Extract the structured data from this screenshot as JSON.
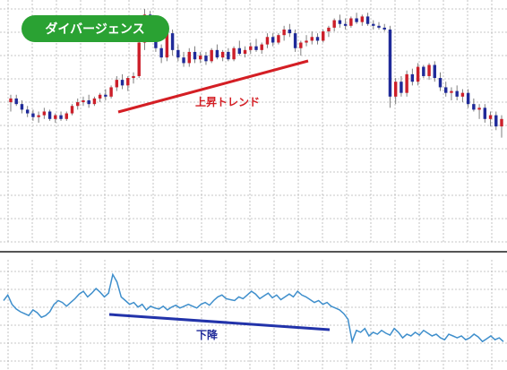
{
  "title_badge": "ダイバージェンス",
  "annotations": {
    "price_trend": "上昇トレンド",
    "indicator_trend": "下降"
  },
  "colors": {
    "bull_candle": "#cc1f2a",
    "bear_candle": "#1f2a99",
    "wick": "#7f7f7f",
    "grid": "#b5b5b5",
    "indicator_line": "#3f8fcc",
    "price_trend_line": "#d41e24",
    "indicator_trend_line": "#2233aa",
    "badge_bg": "#2aa233",
    "badge_text": "#ffffff",
    "price_trend_text": "#d41e24",
    "indicator_trend_text": "#1f2a99"
  },
  "chart_data": [
    {
      "type": "candlestick",
      "title": "",
      "grid": true,
      "legend": "none",
      "ylim": [
        0,
        100
      ],
      "candles": [
        {
          "o": 49,
          "h": 53,
          "l": 44,
          "c": 51
        },
        {
          "o": 51,
          "h": 53,
          "l": 47,
          "c": 48
        },
        {
          "o": 48,
          "h": 50,
          "l": 43,
          "c": 45
        },
        {
          "o": 45,
          "h": 47,
          "l": 41,
          "c": 43
        },
        {
          "o": 43,
          "h": 45,
          "l": 39,
          "c": 41
        },
        {
          "o": 41,
          "h": 44,
          "l": 38,
          "c": 42
        },
        {
          "o": 42,
          "h": 46,
          "l": 40,
          "c": 44
        },
        {
          "o": 44,
          "h": 45,
          "l": 39,
          "c": 40
        },
        {
          "o": 40,
          "h": 43,
          "l": 38,
          "c": 42
        },
        {
          "o": 42,
          "h": 44,
          "l": 39,
          "c": 40
        },
        {
          "o": 40,
          "h": 44,
          "l": 39,
          "c": 43
        },
        {
          "o": 43,
          "h": 48,
          "l": 42,
          "c": 47
        },
        {
          "o": 47,
          "h": 51,
          "l": 45,
          "c": 49
        },
        {
          "o": 49,
          "h": 52,
          "l": 47,
          "c": 50
        },
        {
          "o": 50,
          "h": 53,
          "l": 46,
          "c": 48
        },
        {
          "o": 48,
          "h": 52,
          "l": 47,
          "c": 51
        },
        {
          "o": 51,
          "h": 54,
          "l": 49,
          "c": 53
        },
        {
          "o": 53,
          "h": 56,
          "l": 50,
          "c": 52
        },
        {
          "o": 52,
          "h": 58,
          "l": 51,
          "c": 57
        },
        {
          "o": 57,
          "h": 63,
          "l": 55,
          "c": 61
        },
        {
          "o": 61,
          "h": 64,
          "l": 56,
          "c": 58
        },
        {
          "o": 58,
          "h": 63,
          "l": 55,
          "c": 62
        },
        {
          "o": 62,
          "h": 65,
          "l": 59,
          "c": 63
        },
        {
          "o": 63,
          "h": 83,
          "l": 62,
          "c": 81
        },
        {
          "o": 81,
          "h": 99,
          "l": 77,
          "c": 96
        },
        {
          "o": 96,
          "h": 98,
          "l": 82,
          "c": 84
        },
        {
          "o": 84,
          "h": 90,
          "l": 76,
          "c": 78
        },
        {
          "o": 78,
          "h": 80,
          "l": 70,
          "c": 73
        },
        {
          "o": 73,
          "h": 88,
          "l": 71,
          "c": 86
        },
        {
          "o": 86,
          "h": 88,
          "l": 74,
          "c": 77
        },
        {
          "o": 77,
          "h": 80,
          "l": 71,
          "c": 73
        },
        {
          "o": 73,
          "h": 76,
          "l": 68,
          "c": 70
        },
        {
          "o": 70,
          "h": 78,
          "l": 68,
          "c": 76
        },
        {
          "o": 76,
          "h": 79,
          "l": 70,
          "c": 72
        },
        {
          "o": 72,
          "h": 76,
          "l": 70,
          "c": 74
        },
        {
          "o": 74,
          "h": 76,
          "l": 69,
          "c": 71
        },
        {
          "o": 71,
          "h": 78,
          "l": 70,
          "c": 77
        },
        {
          "o": 77,
          "h": 80,
          "l": 72,
          "c": 73
        },
        {
          "o": 73,
          "h": 77,
          "l": 71,
          "c": 76
        },
        {
          "o": 76,
          "h": 78,
          "l": 71,
          "c": 72
        },
        {
          "o": 72,
          "h": 79,
          "l": 71,
          "c": 78
        },
        {
          "o": 78,
          "h": 82,
          "l": 74,
          "c": 75
        },
        {
          "o": 75,
          "h": 79,
          "l": 73,
          "c": 77
        },
        {
          "o": 77,
          "h": 81,
          "l": 75,
          "c": 79
        },
        {
          "o": 79,
          "h": 83,
          "l": 76,
          "c": 77
        },
        {
          "o": 77,
          "h": 81,
          "l": 75,
          "c": 80
        },
        {
          "o": 80,
          "h": 86,
          "l": 78,
          "c": 84
        },
        {
          "o": 84,
          "h": 86,
          "l": 79,
          "c": 81
        },
        {
          "o": 81,
          "h": 86,
          "l": 80,
          "c": 85
        },
        {
          "o": 85,
          "h": 90,
          "l": 82,
          "c": 88
        },
        {
          "o": 88,
          "h": 91,
          "l": 84,
          "c": 86
        },
        {
          "o": 86,
          "h": 88,
          "l": 76,
          "c": 78
        },
        {
          "o": 78,
          "h": 82,
          "l": 74,
          "c": 81
        },
        {
          "o": 81,
          "h": 85,
          "l": 79,
          "c": 82
        },
        {
          "o": 82,
          "h": 87,
          "l": 80,
          "c": 84
        },
        {
          "o": 84,
          "h": 86,
          "l": 80,
          "c": 82
        },
        {
          "o": 82,
          "h": 88,
          "l": 81,
          "c": 87
        },
        {
          "o": 87,
          "h": 90,
          "l": 84,
          "c": 89
        },
        {
          "o": 89,
          "h": 94,
          "l": 87,
          "c": 93
        },
        {
          "o": 93,
          "h": 96,
          "l": 89,
          "c": 91
        },
        {
          "o": 91,
          "h": 94,
          "l": 88,
          "c": 90
        },
        {
          "o": 90,
          "h": 95,
          "l": 89,
          "c": 94
        },
        {
          "o": 94,
          "h": 97,
          "l": 91,
          "c": 92
        },
        {
          "o": 92,
          "h": 96,
          "l": 90,
          "c": 95
        },
        {
          "o": 95,
          "h": 97,
          "l": 90,
          "c": 91
        },
        {
          "o": 91,
          "h": 93,
          "l": 88,
          "c": 90
        },
        {
          "o": 90,
          "h": 92,
          "l": 88,
          "c": 89
        },
        {
          "o": 89,
          "h": 91,
          "l": 87,
          "c": 88
        },
        {
          "o": 88,
          "h": 90,
          "l": 46,
          "c": 52
        },
        {
          "o": 52,
          "h": 62,
          "l": 48,
          "c": 60
        },
        {
          "o": 60,
          "h": 63,
          "l": 52,
          "c": 54
        },
        {
          "o": 54,
          "h": 66,
          "l": 52,
          "c": 64
        },
        {
          "o": 64,
          "h": 67,
          "l": 58,
          "c": 60
        },
        {
          "o": 60,
          "h": 70,
          "l": 58,
          "c": 68
        },
        {
          "o": 68,
          "h": 69,
          "l": 62,
          "c": 63
        },
        {
          "o": 63,
          "h": 70,
          "l": 61,
          "c": 69
        },
        {
          "o": 69,
          "h": 71,
          "l": 60,
          "c": 62
        },
        {
          "o": 62,
          "h": 65,
          "l": 55,
          "c": 57
        },
        {
          "o": 57,
          "h": 60,
          "l": 52,
          "c": 54
        },
        {
          "o": 54,
          "h": 57,
          "l": 50,
          "c": 55
        },
        {
          "o": 55,
          "h": 58,
          "l": 50,
          "c": 52
        },
        {
          "o": 52,
          "h": 56,
          "l": 49,
          "c": 54
        },
        {
          "o": 54,
          "h": 56,
          "l": 46,
          "c": 48
        },
        {
          "o": 48,
          "h": 51,
          "l": 44,
          "c": 45
        },
        {
          "o": 45,
          "h": 48,
          "l": 40,
          "c": 46
        },
        {
          "o": 46,
          "h": 48,
          "l": 38,
          "c": 40
        },
        {
          "o": 40,
          "h": 44,
          "l": 36,
          "c": 42
        },
        {
          "o": 42,
          "h": 44,
          "l": 34,
          "c": 36
        },
        {
          "o": 36,
          "h": 42,
          "l": 30,
          "c": 40
        }
      ]
    },
    {
      "type": "line",
      "title": "",
      "grid": true,
      "legend": "none",
      "ylim": [
        0,
        100
      ],
      "values": [
        62,
        68,
        58,
        53,
        50,
        48,
        46,
        52,
        49,
        44,
        46,
        50,
        58,
        62,
        60,
        56,
        60,
        64,
        69,
        72,
        66,
        70,
        75,
        71,
        66,
        70,
        90,
        82,
        66,
        62,
        58,
        60,
        55,
        58,
        52,
        56,
        54,
        53,
        56,
        52,
        55,
        57,
        54,
        56,
        58,
        56,
        54,
        58,
        60,
        57,
        62,
        66,
        68,
        64,
        63,
        62,
        66,
        64,
        68,
        72,
        69,
        64,
        67,
        70,
        65,
        68,
        63,
        66,
        69,
        66,
        72,
        68,
        66,
        63,
        60,
        62,
        58,
        60,
        56,
        54,
        52,
        48,
        42,
        18,
        30,
        28,
        32,
        24,
        28,
        26,
        30,
        27,
        25,
        32,
        28,
        22,
        26,
        24,
        28,
        25,
        30,
        27,
        24,
        26,
        22,
        20,
        26,
        24,
        22,
        24,
        20,
        22,
        26,
        23,
        18,
        21,
        24,
        20,
        22,
        18
      ]
    }
  ]
}
